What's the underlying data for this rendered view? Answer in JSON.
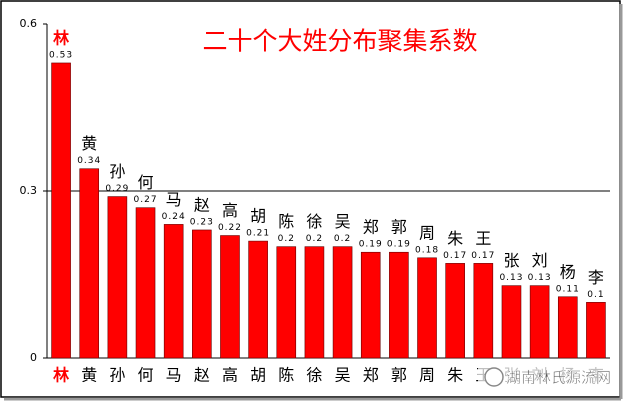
{
  "chart_data": {
    "type": "bar",
    "title": "二十个大姓分布聚集系数",
    "categories": [
      "林",
      "黄",
      "孙",
      "何",
      "马",
      "赵",
      "高",
      "胡",
      "陈",
      "徐",
      "吴",
      "郑",
      "郭",
      "周",
      "朱",
      "王",
      "张",
      "刘",
      "杨",
      "李"
    ],
    "values": [
      0.53,
      0.34,
      0.29,
      0.27,
      0.24,
      0.23,
      0.22,
      0.21,
      0.2,
      0.2,
      0.2,
      0.19,
      0.19,
      0.18,
      0.17,
      0.17,
      0.13,
      0.13,
      0.11,
      0.1
    ],
    "color": "#ff0000",
    "ylim": [
      0,
      0.6
    ],
    "yticks": [
      0,
      0.3,
      0.6
    ],
    "grid": true,
    "watermark": "湖南林氏源流网"
  }
}
